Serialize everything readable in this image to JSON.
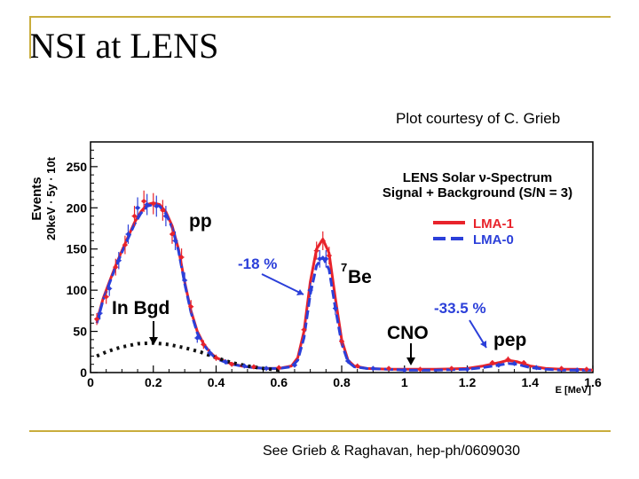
{
  "slide": {
    "title": "NSI at LENS",
    "credit": "Plot courtesy of C. Grieb",
    "footer": "See Grieb & Raghavan, hep-ph/0609030",
    "accent_color": "#c9ad3c"
  },
  "chart_data": {
    "type": "line",
    "title_line1": "LENS Solar ν-Spectrum",
    "title_line2": "Signal + Background (S/N = 3)",
    "ylabel_line1": "Events",
    "ylabel_line2": "20keV · 5y · 10t",
    "xlabel": "E [MeV]",
    "xlim": [
      0,
      1.6
    ],
    "ylim": [
      0,
      280
    ],
    "xticks": [
      0,
      0.2,
      0.4,
      0.6,
      0.8,
      1,
      1.2,
      1.4,
      1.6
    ],
    "xtick_labels": [
      "0",
      "0.2",
      "0.4",
      "0.6",
      "0.8",
      "1",
      "1.2",
      "1.4",
      "1.6"
    ],
    "yticks": [
      0,
      50,
      100,
      150,
      200,
      250
    ],
    "ytick_labels": [
      "0",
      "50",
      "100",
      "150",
      "200",
      "250"
    ],
    "grid": false,
    "legend_position": "top-right",
    "series": [
      {
        "name": "LMA-1",
        "color": "#e8232b",
        "style": "solid",
        "x": [
          0.02,
          0.04,
          0.06,
          0.08,
          0.1,
          0.12,
          0.14,
          0.16,
          0.18,
          0.2,
          0.22,
          0.24,
          0.26,
          0.28,
          0.3,
          0.32,
          0.34,
          0.36,
          0.38,
          0.4,
          0.44,
          0.48,
          0.52,
          0.56,
          0.6,
          0.64,
          0.66,
          0.68,
          0.7,
          0.72,
          0.74,
          0.76,
          0.78,
          0.8,
          0.82,
          0.84,
          0.88,
          0.95,
          1.0,
          1.1,
          1.2,
          1.25,
          1.3,
          1.33,
          1.36,
          1.4,
          1.45,
          1.5,
          1.55,
          1.6
        ],
        "y": [
          62,
          90,
          110,
          130,
          148,
          165,
          182,
          195,
          204,
          206,
          204,
          195,
          178,
          150,
          110,
          75,
          50,
          35,
          25,
          18,
          12,
          8,
          6,
          5,
          5,
          8,
          18,
          50,
          110,
          150,
          162,
          145,
          90,
          40,
          15,
          8,
          5,
          4,
          4,
          4,
          5,
          8,
          12,
          15,
          13,
          8,
          5,
          4,
          4,
          3
        ]
      },
      {
        "name": "LMA-0",
        "color": "#2b3fd9",
        "style": "dashed",
        "x": [
          0.02,
          0.04,
          0.06,
          0.08,
          0.1,
          0.12,
          0.14,
          0.16,
          0.18,
          0.2,
          0.22,
          0.24,
          0.26,
          0.28,
          0.3,
          0.32,
          0.34,
          0.36,
          0.38,
          0.4,
          0.44,
          0.48,
          0.52,
          0.56,
          0.6,
          0.64,
          0.66,
          0.68,
          0.7,
          0.72,
          0.74,
          0.76,
          0.78,
          0.8,
          0.82,
          0.84,
          0.88,
          0.95,
          1.0,
          1.1,
          1.2,
          1.25,
          1.3,
          1.33,
          1.36,
          1.4,
          1.45,
          1.5,
          1.55,
          1.6
        ],
        "y": [
          60,
          88,
          108,
          128,
          146,
          163,
          180,
          193,
          202,
          204,
          202,
          193,
          176,
          148,
          108,
          73,
          48,
          34,
          24,
          17,
          11,
          8,
          6,
          5,
          5,
          7,
          15,
          42,
          95,
          130,
          140,
          125,
          78,
          35,
          13,
          7,
          5,
          4,
          3,
          3,
          4,
          6,
          9,
          11,
          10,
          6,
          4,
          3,
          3,
          3
        ]
      },
      {
        "name": "In Bgd",
        "color": "#111111",
        "style": "dotted",
        "x": [
          0.02,
          0.05,
          0.08,
          0.1,
          0.15,
          0.2,
          0.25,
          0.3,
          0.35,
          0.4,
          0.45,
          0.5,
          0.55,
          0.6
        ],
        "y": [
          20,
          25,
          29,
          31,
          35,
          36,
          34,
          30,
          25,
          18,
          12,
          8,
          5,
          3
        ]
      }
    ],
    "data_points": {
      "red": [
        [
          0.02,
          65
        ],
        [
          0.05,
          92
        ],
        [
          0.08,
          128
        ],
        [
          0.11,
          155
        ],
        [
          0.14,
          190
        ],
        [
          0.17,
          208
        ],
        [
          0.2,
          205
        ],
        [
          0.23,
          197
        ],
        [
          0.26,
          168
        ],
        [
          0.29,
          140
        ],
        [
          0.32,
          80
        ],
        [
          0.36,
          34
        ],
        [
          0.4,
          18
        ],
        [
          0.45,
          10
        ],
        [
          0.52,
          7
        ],
        [
          0.6,
          6
        ],
        [
          0.68,
          52
        ],
        [
          0.72,
          148
        ],
        [
          0.74,
          160
        ],
        [
          0.76,
          142
        ],
        [
          0.8,
          38
        ],
        [
          0.85,
          8
        ],
        [
          0.95,
          5
        ],
        [
          1.05,
          4
        ],
        [
          1.15,
          5
        ],
        [
          1.28,
          12
        ],
        [
          1.33,
          16
        ],
        [
          1.38,
          12
        ],
        [
          1.5,
          5
        ],
        [
          1.58,
          4
        ]
      ],
      "blue": [
        [
          0.03,
          72
        ],
        [
          0.06,
          102
        ],
        [
          0.09,
          136
        ],
        [
          0.12,
          168
        ],
        [
          0.15,
          200
        ],
        [
          0.18,
          204
        ],
        [
          0.21,
          202
        ],
        [
          0.24,
          190
        ],
        [
          0.27,
          160
        ],
        [
          0.3,
          112
        ],
        [
          0.34,
          42
        ],
        [
          0.38,
          24
        ],
        [
          0.43,
          13
        ],
        [
          0.49,
          8
        ],
        [
          0.56,
          5
        ],
        [
          0.65,
          9
        ],
        [
          0.7,
          100
        ],
        [
          0.73,
          138
        ],
        [
          0.75,
          138
        ],
        [
          0.78,
          78
        ],
        [
          0.82,
          14
        ],
        [
          0.9,
          5
        ],
        [
          1.0,
          3
        ],
        [
          1.2,
          4
        ],
        [
          1.3,
          9
        ],
        [
          1.35,
          11
        ],
        [
          1.42,
          6
        ],
        [
          1.55,
          3
        ]
      ]
    },
    "annotations": {
      "pp": "pp",
      "be_sup": "7",
      "be": "Be",
      "in_bgd": "In Bgd",
      "cno": "CNO",
      "pep": "pep",
      "pct_be": "-18 %",
      "pct_pep": "-33.5 %"
    },
    "colors": {
      "annotation_blue": "#2b3fd9",
      "red": "#e8232b"
    }
  }
}
